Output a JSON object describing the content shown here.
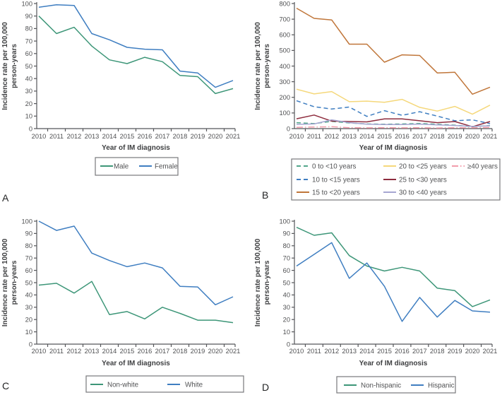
{
  "figure": {
    "description": "Four line charts (A-D) of infectious mononucleosis incidence rates 2010-2021",
    "colors": {
      "axis": "#55565a",
      "tick_text": "#4f5052",
      "title_text": "#3f4042",
      "legend_border": "#77787b",
      "legend_text": "#515254",
      "letter_text": "#232425",
      "green": "#3d9678",
      "blue": "#3f7ec1",
      "teal": "#52a68b",
      "orange": "#c0763a",
      "yellow": "#f5d87b",
      "maroon": "#8e2c3e",
      "lavender": "#a6a6d2",
      "pink": "#f29cab"
    }
  },
  "chart_data": [
    {
      "id": "a",
      "panel_letter": "A",
      "type": "line",
      "xlabel": "Year of IM diagnosis",
      "ylabel": [
        "Incidence rate per 100,000",
        "person-years"
      ],
      "x": [
        "2010",
        "2011",
        "2012",
        "2013",
        "2014",
        "2015",
        "2016",
        "2017",
        "2018",
        "2019",
        "2020",
        "2021"
      ],
      "ylim": [
        0,
        100
      ],
      "yticks": [
        0,
        10,
        20,
        30,
        40,
        50,
        60,
        70,
        80,
        90,
        100
      ],
      "grid": false,
      "legend_position": "bottom",
      "series": [
        {
          "name": "Male",
          "color": "#3d9678",
          "style": "solid",
          "values": [
            90,
            76,
            81,
            66,
            55,
            52,
            57,
            53.5,
            42.5,
            41.5,
            28,
            32
          ]
        },
        {
          "name": "Female",
          "color": "#3f7ec1",
          "style": "solid",
          "values": [
            97,
            99,
            98.5,
            76,
            71,
            65,
            63.5,
            63,
            46,
            44.5,
            33,
            38.5
          ]
        }
      ]
    },
    {
      "id": "b",
      "panel_letter": "B",
      "type": "line",
      "xlabel": "Year of IM diagnosis",
      "ylabel": [
        "Incidence rate per 100,000",
        "person-years"
      ],
      "x": [
        "2010",
        "2011",
        "2012",
        "2013",
        "2014",
        "2015",
        "2016",
        "2017",
        "2018",
        "2019",
        "2020",
        "2021"
      ],
      "ylim": [
        0,
        800
      ],
      "yticks": [
        0,
        100,
        200,
        300,
        400,
        500,
        600,
        700,
        800
      ],
      "grid": false,
      "legend_position": "bottom",
      "series": [
        {
          "name": "0 to <10 years",
          "color": "#52a68b",
          "style": "dashed",
          "values": [
            38,
            32,
            46,
            36,
            30,
            28,
            30,
            33,
            28,
            22,
            12,
            20
          ]
        },
        {
          "name": "10 to <15 years",
          "color": "#3f7ec1",
          "style": "dashed",
          "values": [
            178,
            140,
            125,
            138,
            78,
            115,
            85,
            108,
            80,
            50,
            56,
            32
          ]
        },
        {
          "name": "15 to <20 years",
          "color": "#c0763a",
          "style": "solid",
          "values": [
            770,
            705,
            695,
            540,
            540,
            425,
            472,
            468,
            356,
            360,
            220,
            265
          ]
        },
        {
          "name": "20 to <25 years",
          "color": "#f5d87b",
          "style": "solid",
          "values": [
            252,
            222,
            237,
            172,
            176,
            168,
            187,
            136,
            112,
            142,
            92,
            150
          ]
        },
        {
          "name": "25 to <30 years",
          "color": "#8e2c3e",
          "style": "solid",
          "values": [
            63,
            87,
            48,
            45,
            43,
            62,
            62,
            50,
            38,
            45,
            12,
            45
          ]
        },
        {
          "name": "30 to <40 years",
          "color": "#a6a6d2",
          "style": "solid",
          "values": [
            27,
            30,
            56,
            38,
            28,
            26,
            26,
            29,
            24,
            20,
            14,
            18
          ]
        },
        {
          "name": "≥40 years",
          "color": "#f29cab",
          "style": "dashdot",
          "values": [
            8,
            10,
            12,
            6,
            5,
            6,
            5,
            6,
            4,
            6,
            5,
            8
          ]
        }
      ]
    },
    {
      "id": "c",
      "panel_letter": "C",
      "type": "line",
      "xlabel": "Year of IM diagnosis",
      "ylabel": [
        "Incidence rate per 100,000",
        "person-years"
      ],
      "x": [
        "2010",
        "2011",
        "2012",
        "2013",
        "2014",
        "2015",
        "2016",
        "2017",
        "2018",
        "2019",
        "2020",
        "2021"
      ],
      "ylim": [
        0,
        100
      ],
      "yticks": [
        0,
        10,
        20,
        30,
        40,
        50,
        60,
        70,
        80,
        90,
        100
      ],
      "grid": false,
      "legend_position": "bottom",
      "series": [
        {
          "name": "Non-white",
          "color": "#3d9678",
          "style": "solid",
          "values": [
            48,
            49.5,
            41.5,
            51,
            24,
            26.5,
            20.5,
            30,
            25,
            19.5,
            19.5,
            17.5
          ]
        },
        {
          "name": "White",
          "color": "#3f7ec1",
          "style": "solid",
          "values": [
            100,
            92.5,
            96,
            74,
            68,
            63,
            66,
            62,
            47,
            46.5,
            32,
            38.5
          ]
        }
      ]
    },
    {
      "id": "d",
      "panel_letter": "D",
      "type": "line",
      "xlabel": "Year of IM diagnosis",
      "ylabel": [
        "Incidence rate per 100,000",
        "person-years"
      ],
      "x": [
        "2010",
        "2011",
        "2012",
        "2013",
        "2014",
        "2015",
        "2016",
        "2017",
        "2018",
        "2019",
        "2020",
        "2021"
      ],
      "ylim": [
        0,
        100
      ],
      "yticks": [
        0,
        10,
        20,
        30,
        40,
        50,
        60,
        70,
        80,
        90,
        100
      ],
      "grid": false,
      "legend_position": "bottom",
      "series": [
        {
          "name": "Non-hispanic",
          "color": "#3d9678",
          "style": "solid",
          "values": [
            95,
            88.5,
            90.5,
            72,
            63.5,
            59.5,
            62.5,
            59.5,
            45.5,
            43.5,
            30.5,
            36
          ]
        },
        {
          "name": "Hispanic",
          "color": "#3f7ec1",
          "style": "solid",
          "values": [
            63.5,
            73,
            82.5,
            53.5,
            66,
            47,
            18.5,
            38,
            22,
            35.5,
            27,
            26
          ]
        }
      ]
    }
  ]
}
